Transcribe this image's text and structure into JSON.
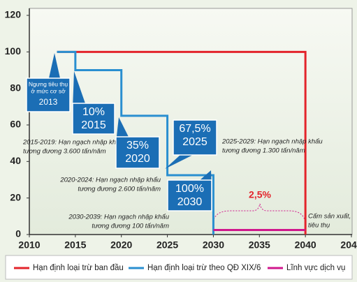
{
  "chart_data": {
    "type": "line",
    "xlim": [
      2010,
      2045
    ],
    "xticks": [
      2010,
      2015,
      2020,
      2025,
      2030,
      2035,
      2040,
      2045
    ],
    "ylim": [
      0,
      120
    ],
    "yticks": [
      0,
      20,
      40,
      60,
      80,
      100,
      120
    ],
    "series": [
      {
        "name": "Hạn định loại trừ ban đầu",
        "color": "#e3242b",
        "x": [
          2013,
          2040,
          2040
        ],
        "values": [
          100,
          100,
          0
        ]
      },
      {
        "name": "Hạn định loại trừ theo QĐ XIX/6",
        "color": "#2a8fd0",
        "x": [
          2013,
          2015,
          2015,
          2020,
          2020,
          2025,
          2025,
          2030,
          2030
        ],
        "values": [
          100,
          100,
          90,
          90,
          65,
          65,
          32.5,
          32.5,
          0
        ]
      },
      {
        "name": "Lĩnh vực dịch vụ",
        "color": "#d0178c",
        "x": [
          2030,
          2040
        ],
        "values": [
          2.5,
          2.5
        ]
      }
    ],
    "callouts": [
      {
        "lines": [
          "Ngưng tiêu thụ",
          "ở mức cơ sở",
          "2013"
        ]
      },
      {
        "lines": [
          "10%",
          "2015"
        ]
      },
      {
        "lines": [
          "35%",
          "2020"
        ]
      },
      {
        "lines": [
          "67,5%",
          "2025"
        ]
      },
      {
        "lines": [
          "100%",
          "2030"
        ]
      }
    ],
    "notes": [
      {
        "lines": [
          "2015-2019: Hạn ngạch nhập khẩu",
          "tương đương 3.600 tấn/năm"
        ]
      },
      {
        "lines": [
          "2020-2024: Hạn ngạch nhập khẩu",
          "tương đương 2.600 tấn/năm"
        ]
      },
      {
        "lines": [
          "2030-2039: Hạn ngạch nhập khẩu",
          "tương đương 100 tấn/năm"
        ]
      },
      {
        "lines": [
          "2025-2029: Hạn ngạch nhập khẩu",
          "tương đương 1.300 tấn/năm"
        ]
      },
      {
        "lines": [
          "Cấm sản xuất,",
          "tiêu thụ"
        ]
      }
    ],
    "service_label": "2,5%"
  }
}
